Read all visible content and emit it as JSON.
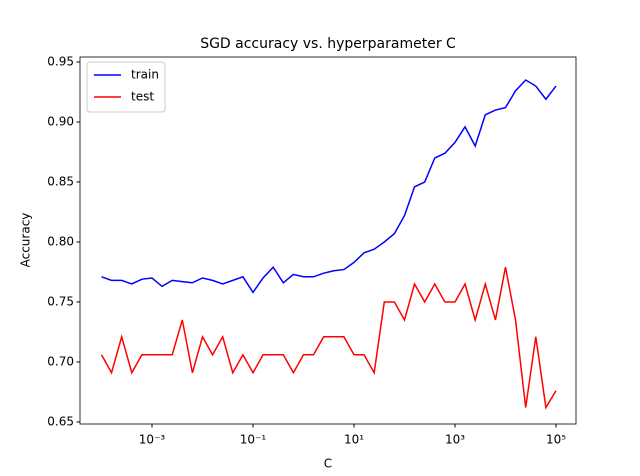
{
  "chart_data": {
    "type": "line",
    "title": "SGD accuracy vs. hyperparameter C",
    "x_label": "C",
    "y_label": "Accuracy",
    "x": [
      0.0001,
      0.000158,
      0.000251,
      0.000398,
      0.000631,
      0.001,
      0.00158,
      0.00251,
      0.00398,
      0.00631,
      0.01,
      0.0158,
      0.0251,
      0.0398,
      0.0631,
      0.1,
      0.158,
      0.251,
      0.398,
      0.631,
      1,
      1.58,
      2.51,
      3.98,
      6.31,
      10,
      15.8,
      25.1,
      39.8,
      63.1,
      100,
      158,
      251,
      398,
      631,
      1000,
      1580,
      2510,
      3980,
      6310,
      10000,
      15800,
      25100,
      39800,
      63100,
      100000
    ],
    "series": [
      {
        "name": "train",
        "color": "#0000ff",
        "values": [
          0.771,
          0.768,
          0.768,
          0.765,
          0.769,
          0.77,
          0.763,
          0.768,
          0.767,
          0.766,
          0.77,
          0.768,
          0.765,
          0.768,
          0.771,
          0.758,
          0.77,
          0.779,
          0.766,
          0.773,
          0.771,
          0.771,
          0.774,
          0.776,
          0.777,
          0.783,
          0.791,
          0.794,
          0.8,
          0.807,
          0.822,
          0.846,
          0.85,
          0.87,
          0.874,
          0.883,
          0.896,
          0.88,
          0.906,
          0.91,
          0.912,
          0.926,
          0.935,
          0.93,
          0.919,
          0.93
        ]
      },
      {
        "name": "test",
        "color": "#ff0000",
        "values": [
          0.706,
          0.691,
          0.721,
          0.691,
          0.706,
          0.706,
          0.706,
          0.706,
          0.735,
          0.691,
          0.721,
          0.706,
          0.721,
          0.691,
          0.706,
          0.691,
          0.706,
          0.706,
          0.706,
          0.691,
          0.706,
          0.706,
          0.721,
          0.721,
          0.721,
          0.706,
          0.706,
          0.691,
          0.75,
          0.75,
          0.735,
          0.765,
          0.75,
          0.765,
          0.75,
          0.75,
          0.765,
          0.735,
          0.765,
          0.735,
          0.779,
          0.735,
          0.662,
          0.721,
          0.662,
          0.676
        ]
      }
    ],
    "x_scale": "log",
    "xlim": [
      3.75e-05,
      249000
    ],
    "xticks": [
      {
        "value": 0.001,
        "label": "10⁻³"
      },
      {
        "value": 0.1,
        "label": "10⁻¹"
      },
      {
        "value": 10,
        "label": "10¹"
      },
      {
        "value": 1000,
        "label": "10³"
      },
      {
        "value": 100000,
        "label": "10⁵"
      }
    ],
    "ylim": [
      0.6483,
      0.9542
    ],
    "yticks": [
      0.65,
      {
        "value": 0.7,
        "label": "0.70"
      },
      0.75,
      {
        "value": 0.8,
        "label": "0.80"
      },
      0.85,
      {
        "value": 0.9,
        "label": "0.90"
      },
      0.95
    ],
    "legend": "upper left"
  }
}
